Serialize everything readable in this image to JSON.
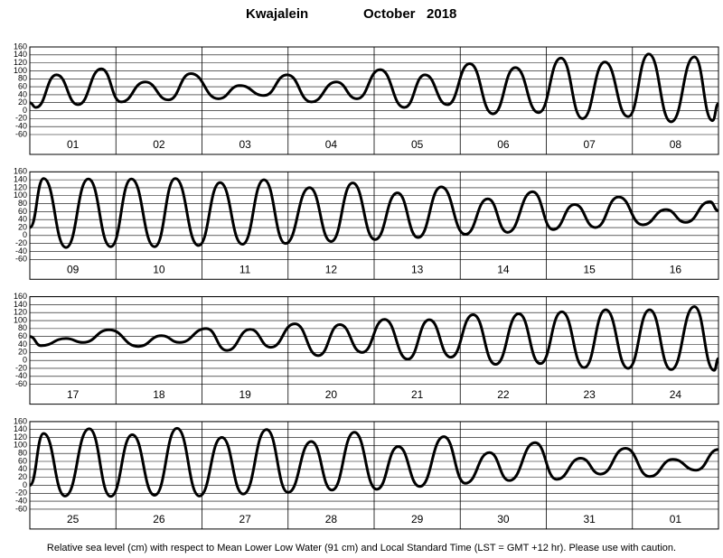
{
  "header": {
    "location": "Kwajalein",
    "period": "October   2018"
  },
  "footnote": "Relative sea level (cm) with respect to Mean Lower Low Water (91 cm) and Local Standard Time (LST = GMT +12 hr). Please use with caution.",
  "chart_data": [
    {
      "type": "line",
      "color": "#000000",
      "grid": true,
      "xlim": [
        0,
        8
      ],
      "ylim": [
        -60,
        160
      ],
      "yticks": [
        -60,
        -40,
        -20,
        0,
        20,
        40,
        60,
        80,
        100,
        120,
        140,
        160
      ],
      "categories": [
        "01",
        "02",
        "03",
        "04",
        "05",
        "06",
        "07",
        "08"
      ],
      "x": [
        0,
        0.07,
        0.31,
        0.56,
        0.83,
        1.06,
        1.34,
        1.61,
        1.87,
        2.19,
        2.44,
        2.72,
        2.99,
        3.27,
        3.56,
        3.8,
        4.07,
        4.35,
        4.59,
        4.85,
        5.11,
        5.38,
        5.64,
        5.91,
        6.17,
        6.42,
        6.68,
        6.95,
        7.19,
        7.45,
        7.72,
        7.93,
        8
      ],
      "values": [
        20,
        8,
        90,
        15,
        105,
        22,
        72,
        27,
        93,
        30,
        63,
        38,
        90,
        22,
        72,
        30,
        103,
        8,
        90,
        15,
        118,
        -8,
        108,
        -5,
        132,
        -20,
        122,
        -15,
        142,
        -28,
        135,
        -25,
        18
      ]
    },
    {
      "type": "line",
      "color": "#000000",
      "grid": true,
      "xlim": [
        0,
        8
      ],
      "ylim": [
        -60,
        160
      ],
      "yticks": [
        -60,
        -40,
        -20,
        0,
        20,
        40,
        60,
        80,
        100,
        120,
        140,
        160
      ],
      "categories": [
        "09",
        "10",
        "11",
        "12",
        "13",
        "14",
        "15",
        "16"
      ],
      "x": [
        0,
        0.16,
        0.42,
        0.68,
        0.94,
        1.18,
        1.45,
        1.69,
        1.96,
        2.21,
        2.47,
        2.72,
        2.97,
        3.25,
        3.5,
        3.75,
        4.01,
        4.27,
        4.51,
        4.78,
        5.06,
        5.32,
        5.55,
        5.84,
        6.08,
        6.33,
        6.57,
        6.84,
        7.12,
        7.39,
        7.62,
        7.9,
        8
      ],
      "values": [
        20,
        143,
        -30,
        142,
        -28,
        142,
        -28,
        143,
        -25,
        133,
        -22,
        140,
        -20,
        120,
        -15,
        132,
        -10,
        107,
        -5,
        122,
        3,
        92,
        8,
        110,
        15,
        78,
        20,
        97,
        27,
        65,
        33,
        85,
        62
      ]
    },
    {
      "type": "line",
      "color": "#000000",
      "grid": true,
      "xlim": [
        0,
        8
      ],
      "ylim": [
        -60,
        160
      ],
      "yticks": [
        -60,
        -40,
        -20,
        0,
        20,
        40,
        60,
        80,
        100,
        120,
        140,
        160
      ],
      "categories": [
        "17",
        "18",
        "19",
        "20",
        "21",
        "22",
        "23",
        "24"
      ],
      "x": [
        0,
        0.13,
        0.42,
        0.62,
        0.92,
        1.26,
        1.53,
        1.74,
        2.05,
        2.29,
        2.56,
        2.8,
        3.08,
        3.35,
        3.6,
        3.86,
        4.12,
        4.39,
        4.64,
        4.89,
        5.15,
        5.41,
        5.68,
        5.93,
        6.18,
        6.44,
        6.69,
        6.95,
        7.2,
        7.45,
        7.72,
        7.95,
        8
      ],
      "values": [
        60,
        37,
        55,
        45,
        77,
        35,
        62,
        45,
        80,
        25,
        78,
        33,
        92,
        12,
        90,
        20,
        103,
        3,
        102,
        8,
        115,
        -10,
        117,
        -8,
        122,
        -18,
        127,
        -20,
        127,
        -23,
        135,
        -25,
        5
      ]
    },
    {
      "type": "line",
      "color": "#000000",
      "grid": true,
      "xlim": [
        0,
        8
      ],
      "ylim": [
        -60,
        160
      ],
      "yticks": [
        -60,
        -40,
        -20,
        0,
        20,
        40,
        60,
        80,
        100,
        120,
        140,
        160
      ],
      "categories": [
        "25",
        "26",
        "27",
        "28",
        "29",
        "30",
        "31",
        "01"
      ],
      "x": [
        0,
        0.16,
        0.41,
        0.69,
        0.94,
        1.19,
        1.45,
        1.71,
        1.97,
        2.23,
        2.48,
        2.75,
        3,
        3.27,
        3.51,
        3.77,
        4.03,
        4.28,
        4.53,
        4.81,
        5.06,
        5.34,
        5.57,
        5.87,
        6.12,
        6.4,
        6.63,
        6.92,
        7.2,
        7.47,
        7.74,
        8
      ],
      "values": [
        0,
        130,
        -27,
        142,
        -28,
        127,
        -25,
        143,
        -27,
        120,
        -22,
        140,
        -18,
        110,
        -12,
        133,
        -10,
        97,
        -3,
        122,
        5,
        82,
        12,
        107,
        15,
        68,
        28,
        93,
        22,
        65,
        38,
        90
      ]
    }
  ]
}
